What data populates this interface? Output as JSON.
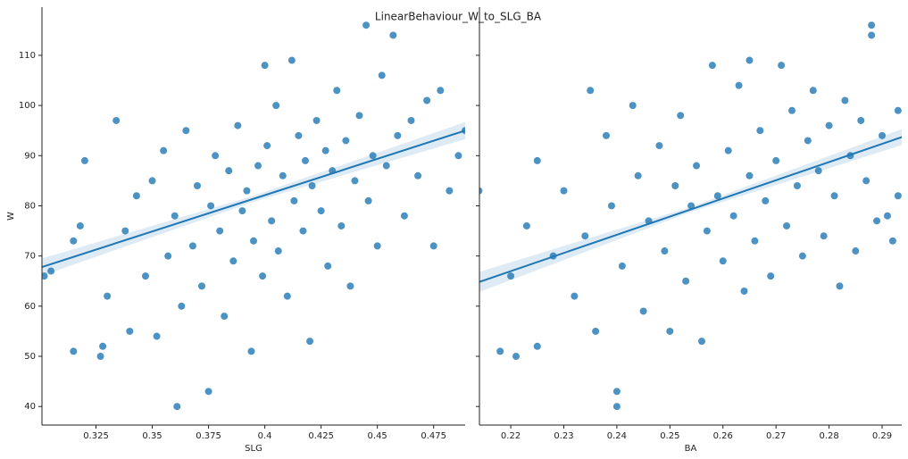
{
  "suptitle": "LinearBehaviour_W_to_SLG_BA",
  "chart_data": [
    {
      "type": "scatter",
      "x_label": "SLG",
      "y_label": "W",
      "color": "#1f77b4",
      "xlim": [
        0.301,
        0.489
      ],
      "ylim": [
        36.3,
        119.6
      ],
      "xticks": [
        0.325,
        0.35,
        0.375,
        0.4,
        0.425,
        0.45,
        0.475
      ],
      "yticks": [
        40,
        50,
        60,
        70,
        80,
        90,
        100,
        110
      ],
      "show_ytick_labels": true,
      "x": [
        0.302,
        0.305,
        0.315,
        0.315,
        0.318,
        0.32,
        0.327,
        0.328,
        0.33,
        0.334,
        0.338,
        0.34,
        0.343,
        0.347,
        0.35,
        0.352,
        0.355,
        0.357,
        0.36,
        0.361,
        0.363,
        0.365,
        0.368,
        0.37,
        0.372,
        0.375,
        0.376,
        0.378,
        0.38,
        0.382,
        0.384,
        0.386,
        0.388,
        0.39,
        0.392,
        0.394,
        0.395,
        0.397,
        0.399,
        0.4,
        0.401,
        0.403,
        0.405,
        0.406,
        0.408,
        0.41,
        0.412,
        0.413,
        0.415,
        0.417,
        0.418,
        0.42,
        0.421,
        0.423,
        0.425,
        0.427,
        0.428,
        0.43,
        0.432,
        0.434,
        0.436,
        0.438,
        0.44,
        0.442,
        0.445,
        0.446,
        0.448,
        0.45,
        0.452,
        0.454,
        0.457,
        0.459,
        0.462,
        0.465,
        0.468,
        0.472,
        0.475,
        0.478,
        0.482,
        0.486,
        0.489
      ],
      "values": [
        66,
        67,
        51,
        73,
        76,
        89,
        50,
        52,
        62,
        97,
        75,
        55,
        82,
        66,
        85,
        54,
        91,
        70,
        78,
        40,
        60,
        95,
        72,
        84,
        64,
        43,
        80,
        90,
        75,
        58,
        87,
        69,
        96,
        79,
        83,
        51,
        73,
        88,
        66,
        108,
        92,
        77,
        100,
        71,
        86,
        62,
        109,
        81,
        94,
        75,
        89,
        53,
        84,
        97,
        79,
        91,
        68,
        87,
        103,
        76,
        93,
        64,
        85,
        98,
        116,
        81,
        90,
        72,
        106,
        88,
        114,
        94,
        78,
        97,
        86,
        101,
        72,
        103,
        83,
        90,
        95
      ],
      "fit": {
        "x": [
          0.301,
          0.395,
          0.489
        ],
        "y": [
          67.8,
          81.4,
          95.0
        ],
        "lower": [
          66.1,
          80.8,
          93.3
        ],
        "upper": [
          69.5,
          82.0,
          96.7
        ]
      }
    },
    {
      "type": "scatter",
      "x_label": "BA",
      "color": "#1f77b4",
      "xlim": [
        0.2141,
        0.2937
      ],
      "ylim": [
        36.3,
        119.6
      ],
      "xticks": [
        0.22,
        0.23,
        0.24,
        0.25,
        0.26,
        0.27,
        0.28,
        0.29
      ],
      "yticks": [
        40,
        50,
        60,
        70,
        80,
        90,
        100,
        110
      ],
      "show_ytick_labels": false,
      "x": [
        0.214,
        0.218,
        0.22,
        0.221,
        0.223,
        0.225,
        0.225,
        0.228,
        0.23,
        0.232,
        0.234,
        0.235,
        0.236,
        0.238,
        0.239,
        0.24,
        0.24,
        0.241,
        0.243,
        0.244,
        0.245,
        0.246,
        0.248,
        0.249,
        0.25,
        0.251,
        0.252,
        0.253,
        0.254,
        0.255,
        0.256,
        0.257,
        0.258,
        0.259,
        0.26,
        0.261,
        0.262,
        0.263,
        0.264,
        0.265,
        0.265,
        0.266,
        0.267,
        0.268,
        0.269,
        0.27,
        0.271,
        0.272,
        0.273,
        0.274,
        0.275,
        0.276,
        0.277,
        0.278,
        0.279,
        0.28,
        0.281,
        0.282,
        0.283,
        0.284,
        0.285,
        0.286,
        0.287,
        0.288,
        0.288,
        0.289,
        0.29,
        0.291,
        0.292,
        0.293,
        0.293
      ],
      "values": [
        83,
        51,
        66,
        50,
        76,
        89,
        52,
        70,
        83,
        62,
        74,
        103,
        55,
        94,
        80,
        40,
        43,
        68,
        100,
        86,
        59,
        77,
        92,
        71,
        55,
        84,
        98,
        65,
        80,
        88,
        53,
        75,
        108,
        82,
        69,
        91,
        78,
        104,
        63,
        109,
        86,
        73,
        95,
        81,
        66,
        89,
        108,
        76,
        99,
        84,
        70,
        93,
        103,
        87,
        74,
        96,
        82,
        64,
        101,
        90,
        71,
        97,
        85,
        116,
        114,
        77,
        94,
        78,
        73,
        82,
        99
      ],
      "fit": {
        "x": [
          0.214,
          0.254,
          0.294
        ],
        "y": [
          64.8,
          79.3,
          93.8
        ],
        "lower": [
          62.8,
          78.8,
          92.2
        ],
        "upper": [
          66.8,
          79.8,
          95.4
        ]
      }
    }
  ]
}
